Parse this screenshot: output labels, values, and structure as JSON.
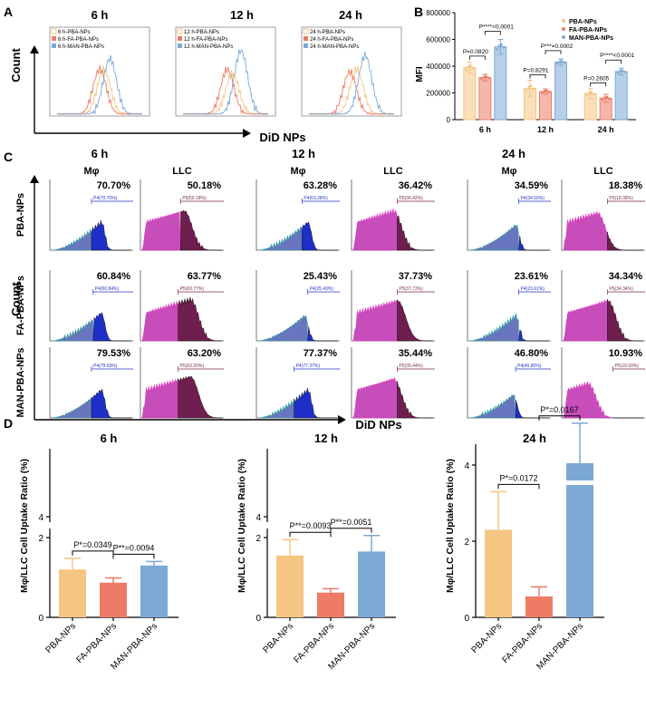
{
  "panel_labels": {
    "A": "A",
    "B": "B",
    "C": "C",
    "D": "D"
  },
  "colors": {
    "pba": "#F5C582",
    "fa": "#EE7B66",
    "man": "#7BA9D3",
    "macro_fill": "#1E2FC8",
    "macro_light": "#5A66B8",
    "macro_edge": "#2AA69A",
    "llc_fill": "#6E1F4E",
    "llc_light": "#C13AB4",
    "llc_edge": "#E040C0"
  },
  "panelA": {
    "y_label": "Count",
    "x_label": "DiD NPs",
    "plots": [
      {
        "title": "6 h",
        "legend": [
          "6 h-PBA-NPs",
          "6 h-FA-PBA-NPs",
          "6 h-MAN-PBA-NPs"
        ]
      },
      {
        "title": "12 h",
        "legend": [
          "12 h-PBA-NPs",
          "12 h-FA-PBA-NPs",
          "12 h-MAN-PBA-NPs"
        ]
      },
      {
        "title": "24 h",
        "legend": [
          "24 h-PBA-NPs",
          "24 h-FA-PBA-NPs",
          "24 h-MAN-PBA-NPs"
        ]
      }
    ]
  },
  "chart_data": [
    {
      "type": "bar",
      "panel": "B",
      "title": "",
      "xlabel": "",
      "ylabel": "MFI",
      "categories": [
        "6 h",
        "12 h",
        "24 h"
      ],
      "ylim": [
        0,
        800000
      ],
      "yticks": [
        "0",
        "200000",
        "400000",
        "600000",
        "800000"
      ],
      "legend_position": "top-right",
      "series": [
        {
          "name": "PBA-NPs",
          "values": [
            390000,
            235000,
            195000
          ],
          "errors": [
            45000,
            60000,
            40000
          ]
        },
        {
          "name": "FA-PBA-NPs",
          "values": [
            315000,
            210000,
            160000
          ],
          "errors": [
            25000,
            20000,
            30000
          ]
        },
        {
          "name": "MAN-PBA-NPs",
          "values": [
            545000,
            430000,
            360000
          ],
          "errors": [
            55000,
            25000,
            25000
          ]
        }
      ],
      "annotations": [
        {
          "group": "6 h",
          "pairs": [
            {
              "from": 0,
              "to": 1,
              "label": "P=0.0820"
            },
            {
              "from": 1,
              "to": 2,
              "label": "P****<0.0001"
            }
          ]
        },
        {
          "group": "12 h",
          "pairs": [
            {
              "from": 0,
              "to": 1,
              "label": "P=0.8291"
            },
            {
              "from": 1,
              "to": 2,
              "label": "P***=0.0002"
            }
          ]
        },
        {
          "group": "24 h",
          "pairs": [
            {
              "from": 0,
              "to": 1,
              "label": "P=0.2605"
            },
            {
              "from": 1,
              "to": 2,
              "label": "P****<0.0001"
            }
          ]
        }
      ]
    },
    {
      "type": "histogram-grid",
      "panel": "C",
      "y_label": "Count",
      "x_label": "DiD NPs",
      "time_labels": [
        "6 h",
        "12 h",
        "24 h"
      ],
      "cell_labels": [
        "Mφ",
        "LLC"
      ],
      "row_labels": [
        "PBA-NPs",
        "FA-PBA-NPs",
        "MAN-PBA-NPs"
      ],
      "rows": [
        {
          "cells": [
            {
              "pct": "70.70%",
              "gate": "P4(70.70%)",
              "type": "macro",
              "peak": 0.62,
              "split": 0.5
            },
            {
              "pct": "50.18%",
              "gate": "P5(50.18%)",
              "type": "llc",
              "peak": 0.52,
              "split": 0.48
            },
            {
              "pct": "63.28%",
              "gate": "P4(63.28%)",
              "type": "macro",
              "peak": 0.62,
              "split": 0.55
            },
            {
              "pct": "36.42%",
              "gate": "P5(36.42%)",
              "type": "llc",
              "peak": 0.5,
              "split": 0.55
            },
            {
              "pct": "34.59%",
              "gate": "P4(34.59%)",
              "type": "macro",
              "peak": 0.58,
              "split": 0.62
            },
            {
              "pct": "18.38%",
              "gate": "P5(18.38%)",
              "type": "llc",
              "peak": 0.42,
              "split": 0.55
            }
          ]
        },
        {
          "cells": [
            {
              "pct": "60.84%",
              "gate": "P4(60.84%)",
              "type": "macro",
              "peak": 0.62,
              "split": 0.52
            },
            {
              "pct": "63.77%",
              "gate": "P5(63.77%)",
              "type": "llc",
              "peak": 0.6,
              "split": 0.45
            },
            {
              "pct": "25.43%",
              "gate": "P4(25.43%)",
              "type": "macro",
              "peak": 0.58,
              "split": 0.62
            },
            {
              "pct": "37.73%",
              "gate": "P5(37.73%)",
              "type": "llc",
              "peak": 0.55,
              "split": 0.55
            },
            {
              "pct": "23.61%",
              "gate": "P4(23.61%)",
              "type": "macro",
              "peak": 0.58,
              "split": 0.62
            },
            {
              "pct": "34.34%",
              "gate": "P5(34.34%)",
              "type": "llc",
              "peak": 0.55,
              "split": 0.55
            }
          ]
        },
        {
          "cells": [
            {
              "pct": "79.53%",
              "gate": "P4(79.53%)",
              "type": "macro",
              "peak": 0.62,
              "split": 0.5
            },
            {
              "pct": "63.20%",
              "gate": "P5(63.20%)",
              "type": "llc",
              "peak": 0.6,
              "split": 0.45
            },
            {
              "pct": "77.37%",
              "gate": "P4(77.37%)",
              "type": "macro",
              "peak": 0.62,
              "split": 0.45
            },
            {
              "pct": "35.44%",
              "gate": "P5(35.44%)",
              "type": "llc",
              "peak": 0.5,
              "split": 0.55
            },
            {
              "pct": "46.80%",
              "gate": "P4(46.80%)",
              "type": "macro",
              "peak": 0.55,
              "split": 0.58
            },
            {
              "pct": "10.93%",
              "gate": "P5(10.93%)",
              "type": "llc",
              "peak": 0.3,
              "split": 0.62
            }
          ]
        }
      ]
    },
    {
      "type": "bar",
      "panel": "D",
      "title": "6 h",
      "ylabel": "Mφ/LLC Cell Uptake Ratio (%)",
      "categories": [
        "PBA-NPs",
        "FA-PBA-NPs",
        "MAN-PBA-NPs"
      ],
      "values": [
        1.2,
        0.87,
        1.3
      ],
      "errors": [
        0.28,
        0.12,
        0.1
      ],
      "ylim": [
        0,
        4
      ],
      "yticks": [
        "0",
        "2",
        "4"
      ],
      "annotations": [
        {
          "from": 0,
          "to": 1,
          "label": "P*=0.0349"
        },
        {
          "from": 1,
          "to": 2,
          "label": "P**=0.0094"
        }
      ]
    },
    {
      "type": "bar",
      "panel": "D",
      "title": "12 h",
      "ylabel": "Mφ/LLC Cell Uptake Ratio (%)",
      "categories": [
        "PBA-NPs",
        "FA-PBA-NPs",
        "MAN-PBA-NPs"
      ],
      "values": [
        1.55,
        0.62,
        1.65
      ],
      "errors": [
        0.4,
        0.1,
        0.5
      ],
      "ylim": [
        0,
        4
      ],
      "yticks": [
        "0",
        "2",
        "4"
      ],
      "annotations": [
        {
          "from": 0,
          "to": 1,
          "label": "P**=0.0093"
        },
        {
          "from": 1,
          "to": 2,
          "label": "P**=0.0051"
        }
      ]
    },
    {
      "type": "bar",
      "panel": "D",
      "title": "24 h",
      "ylabel": "Mφ/LLC Cell Uptake Ratio (%)",
      "categories": [
        "PBA-NPs",
        "FA-PBA-NPs",
        "MAN-PBA-NPs"
      ],
      "values": [
        2.3,
        0.55,
        4.05
      ],
      "errors": [
        1.0,
        0.25,
        1.05
      ],
      "ylim": [
        0,
        5.2
      ],
      "yticks": [
        "0",
        "2",
        "4"
      ],
      "axis_break_at": 3.5,
      "annotations": [
        {
          "from": 0,
          "to": 1,
          "label": "P*=0.0172"
        },
        {
          "from": 1,
          "to": 2,
          "label": "P*=0.0167"
        }
      ]
    }
  ]
}
